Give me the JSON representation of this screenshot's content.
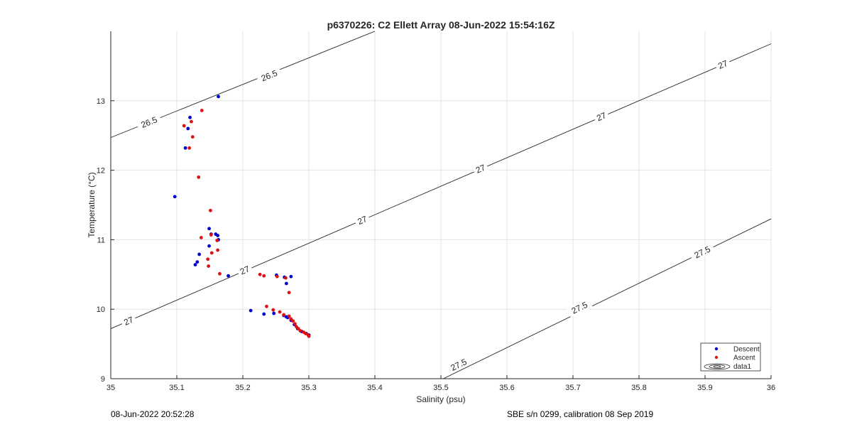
{
  "chart_data": {
    "type": "scatter",
    "title": "p6370226: C2 Ellett Array 08-Jun-2022 15:54:16Z",
    "xlabel": "Salinity (psu)",
    "ylabel": "Temperature (°C)",
    "xlim": [
      35,
      36
    ],
    "ylim": [
      9,
      14
    ],
    "xticks": [
      35,
      35.1,
      35.2,
      35.3,
      35.4,
      35.5,
      35.6,
      35.7,
      35.8,
      35.9,
      36
    ],
    "xtick_labels": [
      "35",
      "35.1",
      "35.2",
      "35.3",
      "35.4",
      "35.5",
      "35.6",
      "35.7",
      "35.8",
      "35.9",
      "36"
    ],
    "yticks": [
      9,
      10,
      11,
      12,
      13
    ],
    "ytick_labels": [
      "9",
      "10",
      "11",
      "12",
      "13"
    ],
    "grid": true,
    "legend_position": "bottom-right",
    "series": [
      {
        "name": "Descent",
        "color": "#0000cc",
        "points": [
          [
            35.163,
            13.06
          ],
          [
            35.12,
            12.76
          ],
          [
            35.117,
            12.6
          ],
          [
            35.113,
            12.32
          ],
          [
            35.097,
            11.62
          ],
          [
            35.149,
            11.16
          ],
          [
            35.152,
            11.08
          ],
          [
            35.159,
            11.08
          ],
          [
            35.162,
            11.06
          ],
          [
            35.163,
            11.0
          ],
          [
            35.149,
            10.91
          ],
          [
            35.134,
            10.79
          ],
          [
            35.131,
            10.68
          ],
          [
            35.128,
            10.64
          ],
          [
            35.178,
            10.48
          ],
          [
            35.251,
            10.49
          ],
          [
            35.263,
            10.46
          ],
          [
            35.273,
            10.47
          ],
          [
            35.266,
            10.37
          ],
          [
            35.212,
            9.98
          ],
          [
            35.232,
            9.93
          ],
          [
            35.247,
            9.94
          ],
          [
            35.262,
            9.91
          ],
          [
            35.266,
            9.89
          ],
          [
            35.268,
            9.88
          ],
          [
            35.273,
            9.84
          ],
          [
            35.278,
            9.78
          ],
          [
            35.283,
            9.72
          ],
          [
            35.289,
            9.68
          ],
          [
            35.296,
            9.65
          ],
          [
            35.3,
            9.63
          ]
        ]
      },
      {
        "name": "Ascent",
        "color": "#dd1111",
        "points": [
          [
            35.138,
            12.86
          ],
          [
            35.122,
            12.7
          ],
          [
            35.111,
            12.64
          ],
          [
            35.124,
            12.48
          ],
          [
            35.119,
            12.32
          ],
          [
            35.133,
            11.9
          ],
          [
            35.151,
            11.42
          ],
          [
            35.137,
            11.03
          ],
          [
            35.152,
            11.07
          ],
          [
            35.161,
            10.99
          ],
          [
            35.162,
            10.85
          ],
          [
            35.153,
            10.81
          ],
          [
            35.147,
            10.72
          ],
          [
            35.148,
            10.62
          ],
          [
            35.165,
            10.51
          ],
          [
            35.226,
            10.5
          ],
          [
            35.232,
            10.48
          ],
          [
            35.252,
            10.47
          ],
          [
            35.265,
            10.45
          ],
          [
            35.27,
            10.24
          ],
          [
            35.236,
            10.04
          ],
          [
            35.246,
            9.99
          ],
          [
            35.256,
            9.96
          ],
          [
            35.262,
            9.92
          ],
          [
            35.27,
            9.9
          ],
          [
            35.273,
            9.86
          ],
          [
            35.276,
            9.83
          ],
          [
            35.279,
            9.79
          ],
          [
            35.281,
            9.75
          ],
          [
            35.284,
            9.72
          ],
          [
            35.287,
            9.69
          ],
          [
            35.292,
            9.67
          ],
          [
            35.295,
            9.65
          ],
          [
            35.299,
            9.63
          ],
          [
            35.3,
            9.61
          ]
        ]
      }
    ],
    "contours": [
      {
        "level": "26.5",
        "points": [
          [
            35.0,
            12.47
          ],
          [
            35.4,
            14.0
          ]
        ],
        "label_positions": [
          [
            35.058,
            12.69
          ],
          [
            35.24,
            13.36
          ]
        ]
      },
      {
        "level": "27",
        "points": [
          [
            35.0,
            9.72
          ],
          [
            36.0,
            13.82
          ]
        ],
        "label_positions": [
          [
            35.027,
            9.83
          ],
          [
            35.203,
            10.56
          ],
          [
            35.381,
            11.28
          ],
          [
            35.56,
            12.02
          ],
          [
            35.743,
            12.77
          ],
          [
            35.927,
            13.52
          ]
        ]
      },
      {
        "level": "27.5",
        "points": [
          [
            35.482,
            8.9
          ],
          [
            36.0,
            11.3
          ]
        ],
        "label_positions": [
          [
            35.527,
            9.2
          ],
          [
            35.71,
            10.02
          ],
          [
            35.896,
            10.82
          ]
        ]
      }
    ],
    "legend_entries": [
      "Descent",
      "Ascent",
      "data1"
    ]
  },
  "footer": {
    "timestamp": "08-Jun-2022 20:52:28",
    "calibration": "SBE s/n 0299, calibration 08 Sep 2019"
  }
}
